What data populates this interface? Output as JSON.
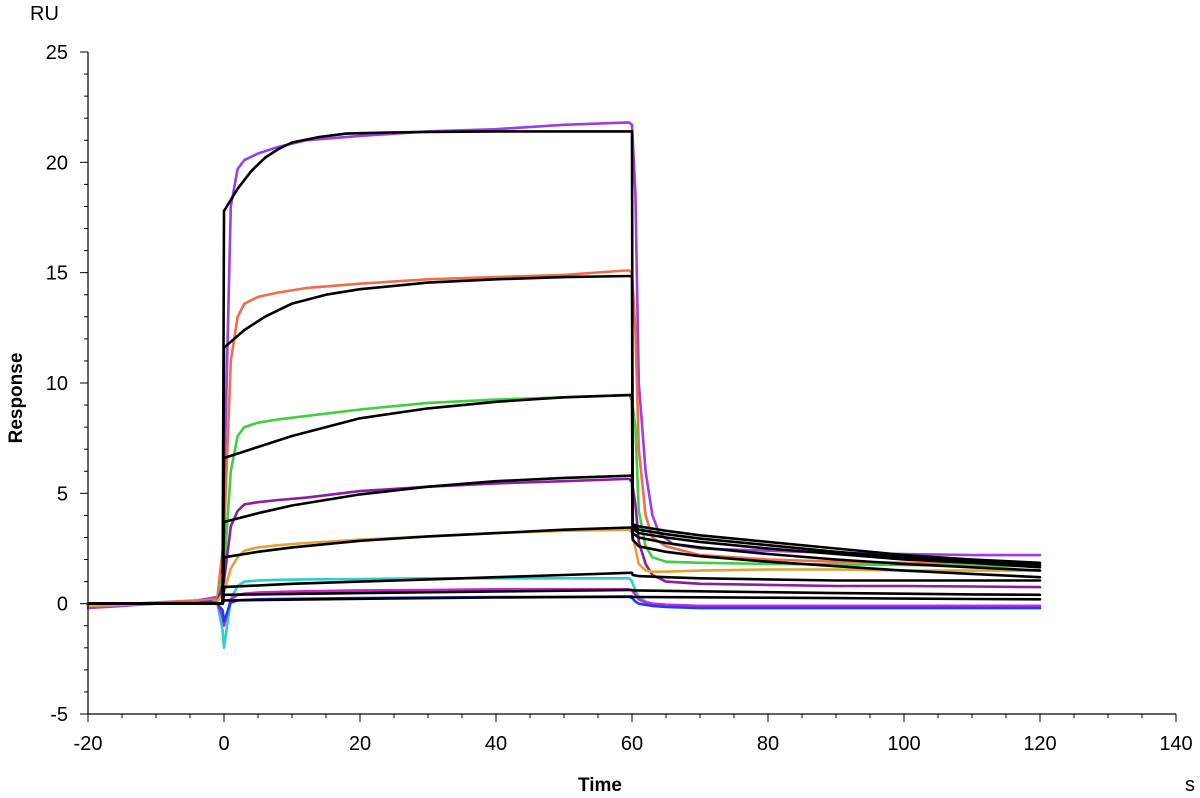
{
  "chart_data": {
    "type": "line",
    "title": "",
    "xlabel": "Time",
    "ylabel": "Response",
    "x_unit": "s",
    "y_unit": "RU",
    "xlim": [
      -20,
      140
    ],
    "ylim": [
      -5,
      25
    ],
    "x_ticks": [
      -20,
      0,
      20,
      40,
      60,
      80,
      100,
      120,
      140
    ],
    "y_ticks": [
      -5,
      0,
      5,
      10,
      15,
      20,
      25
    ],
    "grid": false,
    "legend": "none",
    "colors": {
      "purple": "#9a3ee8",
      "red": "#f06c4c",
      "green": "#3fcf3f",
      "violet": "#8b1e9e",
      "orange": "#e3a236",
      "cyan": "#2ccfcf",
      "magenta": "#d020d8",
      "blue": "#1d3ff0",
      "fit": "#000000"
    },
    "series": [
      {
        "color": "purple",
        "x": [
          -20,
          -5,
          -1,
          -0.2,
          0,
          1,
          2,
          3,
          5,
          8,
          12,
          20,
          30,
          40,
          50,
          59,
          59.6,
          60,
          60.5,
          61,
          62,
          63,
          64,
          66,
          70,
          80,
          90,
          100,
          110,
          120
        ],
        "y": [
          -0.2,
          0.1,
          0.3,
          0.5,
          5,
          18,
          19.7,
          20.1,
          20.4,
          20.7,
          21,
          21.2,
          21.4,
          21.5,
          21.7,
          21.8,
          21.8,
          21.7,
          18.6,
          10,
          6,
          4,
          3.2,
          2.7,
          2.5,
          2.4,
          2.3,
          2.25,
          2.2,
          2.2
        ]
      },
      {
        "color": "red",
        "x": [
          -20,
          -1,
          0,
          1,
          2,
          3,
          5,
          8,
          12,
          20,
          30,
          40,
          50,
          59,
          59.6,
          60,
          60.5,
          61,
          62,
          63,
          65,
          70,
          80,
          90,
          100,
          110,
          120
        ],
        "y": [
          -0.1,
          0.2,
          3,
          11,
          13,
          13.6,
          13.9,
          14.1,
          14.3,
          14.5,
          14.7,
          14.8,
          14.9,
          15.1,
          15.1,
          15,
          12.4,
          7,
          4,
          3,
          2.6,
          2.2,
          2,
          1.9,
          1.85,
          1.8,
          1.75
        ]
      },
      {
        "color": "green",
        "x": [
          -20,
          -1,
          0,
          1,
          2,
          3,
          5,
          8,
          12,
          20,
          30,
          40,
          50,
          59,
          59.6,
          60,
          60.5,
          61,
          62,
          63,
          65,
          70,
          80,
          90,
          100,
          110,
          120
        ],
        "y": [
          -0.1,
          0.1,
          1.5,
          6,
          7.6,
          8,
          8.2,
          8.35,
          8.5,
          8.8,
          9.1,
          9.25,
          9.35,
          9.45,
          9.45,
          9.2,
          8,
          4.2,
          2.6,
          2.1,
          1.9,
          1.85,
          1.8,
          1.78,
          1.75,
          1.72,
          1.7
        ]
      },
      {
        "color": "violet",
        "x": [
          -20,
          -1,
          0,
          1,
          2,
          3,
          5,
          8,
          12,
          20,
          30,
          40,
          50,
          59,
          59.6,
          60,
          60.5,
          61,
          62,
          63,
          65,
          70,
          80,
          90,
          100,
          110,
          120
        ],
        "y": [
          -0.1,
          0.1,
          1,
          3.5,
          4.2,
          4.5,
          4.6,
          4.7,
          4.8,
          5.1,
          5.3,
          5.45,
          5.55,
          5.65,
          5.65,
          5.5,
          4.5,
          2.8,
          1.8,
          1.3,
          1,
          0.9,
          0.85,
          0.8,
          0.8,
          0.78,
          0.75
        ]
      },
      {
        "color": "orange",
        "x": [
          -20,
          -1,
          0,
          1,
          2,
          3,
          5,
          8,
          12,
          20,
          30,
          40,
          50,
          59,
          59.6,
          60,
          60.5,
          61,
          62,
          63,
          65,
          70,
          80,
          90,
          100,
          110,
          120
        ],
        "y": [
          -0.1,
          0.1,
          0.5,
          1.6,
          2.1,
          2.4,
          2.55,
          2.65,
          2.75,
          2.9,
          3.05,
          3.2,
          3.3,
          3.35,
          3.35,
          3.2,
          2.5,
          1.8,
          1.5,
          1.45,
          1.45,
          1.5,
          1.55,
          1.55,
          1.5,
          1.5,
          1.5
        ]
      },
      {
        "color": "cyan",
        "x": [
          -20,
          -1,
          -0.2,
          0,
          1,
          2,
          3,
          5,
          8,
          12,
          20,
          30,
          40,
          50,
          59,
          59.6,
          60,
          60.5,
          61,
          62,
          63,
          65,
          70,
          80,
          90,
          100,
          110,
          120
        ],
        "y": [
          0,
          0.05,
          -1.2,
          -2,
          0.2,
          0.8,
          1,
          1.05,
          1.08,
          1.1,
          1.12,
          1.15,
          1.15,
          1.15,
          1.15,
          1.15,
          1,
          0.6,
          0.3,
          0.1,
          0,
          -0.05,
          -0.1,
          -0.1,
          -0.1,
          -0.1,
          -0.1,
          -0.1
        ]
      },
      {
        "color": "magenta",
        "x": [
          -20,
          -1,
          -0.2,
          0,
          1,
          2,
          3,
          5,
          10,
          20,
          30,
          40,
          50,
          59,
          59.6,
          60,
          60.5,
          61,
          62,
          63,
          65,
          70,
          80,
          90,
          100,
          110,
          120
        ],
        "y": [
          0,
          0.05,
          -0.6,
          -1,
          0.2,
          0.4,
          0.45,
          0.5,
          0.55,
          0.6,
          0.62,
          0.65,
          0.65,
          0.65,
          0.65,
          0.6,
          0.4,
          0.2,
          0.05,
          0,
          -0.05,
          -0.1,
          -0.1,
          -0.1,
          -0.1,
          -0.1,
          -0.1
        ]
      },
      {
        "color": "blue",
        "x": [
          -20,
          -5,
          -2,
          -1,
          -0.2,
          0,
          1,
          2,
          5,
          10,
          20,
          30,
          40,
          50,
          59,
          59.6,
          60,
          60.5,
          61,
          62,
          63,
          65,
          70,
          80,
          90,
          100,
          110,
          120
        ],
        "y": [
          0,
          0,
          0.1,
          0,
          -0.3,
          -0.8,
          0.05,
          0.15,
          0.2,
          0.22,
          0.25,
          0.28,
          0.3,
          0.3,
          0.3,
          0.3,
          0.25,
          0.1,
          0,
          -0.05,
          -0.1,
          -0.15,
          -0.2,
          -0.2,
          -0.2,
          -0.2,
          -0.2,
          -0.2
        ]
      },
      {
        "color": "fit",
        "x": [
          -20,
          -0.2,
          0,
          2,
          4,
          6,
          8,
          10,
          14,
          18,
          24,
          30,
          40,
          50,
          59.8,
          60,
          60.1,
          61,
          65,
          70,
          80,
          90,
          100,
          110,
          120
        ],
        "y": [
          0,
          0,
          17.8,
          18.8,
          19.6,
          20.2,
          20.6,
          20.9,
          21.15,
          21.3,
          21.35,
          21.38,
          21.4,
          21.4,
          21.4,
          21.4,
          3.6,
          3.5,
          3.3,
          3.1,
          2.8,
          2.5,
          2.2,
          2,
          1.85
        ]
      },
      {
        "color": "fit",
        "x": [
          -20,
          -0.2,
          0,
          3,
          6,
          10,
          15,
          20,
          30,
          40,
          50,
          59.8,
          60,
          60.1,
          61,
          65,
          70,
          80,
          90,
          100,
          110,
          120
        ],
        "y": [
          0,
          0,
          11.6,
          12.4,
          13,
          13.6,
          14,
          14.25,
          14.55,
          14.7,
          14.8,
          14.85,
          14.85,
          3.5,
          3.35,
          3.15,
          2.95,
          2.65,
          2.35,
          2.1,
          1.9,
          1.75
        ]
      },
      {
        "color": "fit",
        "x": [
          -20,
          -0.2,
          0,
          5,
          10,
          15,
          20,
          30,
          40,
          50,
          59.8,
          60,
          60.1,
          61,
          65,
          70,
          80,
          90,
          100,
          110,
          120
        ],
        "y": [
          0,
          0,
          6.6,
          7.1,
          7.6,
          8,
          8.4,
          8.85,
          9.15,
          9.35,
          9.45,
          9.45,
          3.4,
          3.2,
          3,
          2.8,
          2.5,
          2.25,
          2,
          1.85,
          1.65
        ]
      },
      {
        "color": "fit",
        "x": [
          -20,
          -0.2,
          0,
          5,
          10,
          20,
          30,
          40,
          50,
          59.8,
          60,
          60.1,
          61,
          65,
          70,
          80,
          90,
          100,
          110,
          120
        ],
        "y": [
          0,
          0,
          3.7,
          4.1,
          4.45,
          4.95,
          5.3,
          5.55,
          5.7,
          5.8,
          5.8,
          3.2,
          3,
          2.75,
          2.55,
          2.25,
          2,
          1.8,
          1.65,
          1.5
        ]
      },
      {
        "color": "fit",
        "x": [
          -20,
          -0.2,
          0,
          5,
          10,
          20,
          30,
          40,
          50,
          59.8,
          60,
          60.1,
          61,
          65,
          70,
          80,
          90,
          100,
          110,
          120
        ],
        "y": [
          0,
          0,
          2.1,
          2.35,
          2.55,
          2.85,
          3.05,
          3.2,
          3.35,
          3.45,
          3.45,
          2.9,
          2.6,
          2.35,
          2.15,
          1.9,
          1.7,
          1.5,
          1.35,
          1.2
        ]
      },
      {
        "color": "fit",
        "x": [
          -20,
          -0.2,
          0,
          10,
          20,
          30,
          40,
          50,
          59.8,
          60,
          60.1,
          61,
          65,
          70,
          80,
          90,
          100,
          110,
          120
        ],
        "y": [
          0,
          0,
          0.75,
          0.9,
          1,
          1.1,
          1.2,
          1.3,
          1.4,
          1.4,
          1.3,
          1.25,
          1.2,
          1.15,
          1.1,
          1.05,
          1.05,
          1.05,
          1.05
        ]
      },
      {
        "color": "fit",
        "x": [
          -20,
          -0.2,
          0,
          20,
          40,
          59.8,
          60,
          60.1,
          70,
          80,
          90,
          100,
          110,
          120
        ],
        "y": [
          0,
          0,
          0.4,
          0.48,
          0.55,
          0.62,
          0.62,
          0.6,
          0.56,
          0.52,
          0.48,
          0.45,
          0.42,
          0.4
        ]
      },
      {
        "color": "fit",
        "x": [
          -20,
          -0.2,
          0,
          20,
          40,
          59.8,
          60,
          60.1,
          70,
          80,
          90,
          100,
          110,
          120
        ],
        "y": [
          0,
          0,
          0.15,
          0.22,
          0.28,
          0.32,
          0.32,
          0.3,
          0.29,
          0.27,
          0.25,
          0.23,
          0.21,
          0.2
        ]
      }
    ]
  }
}
